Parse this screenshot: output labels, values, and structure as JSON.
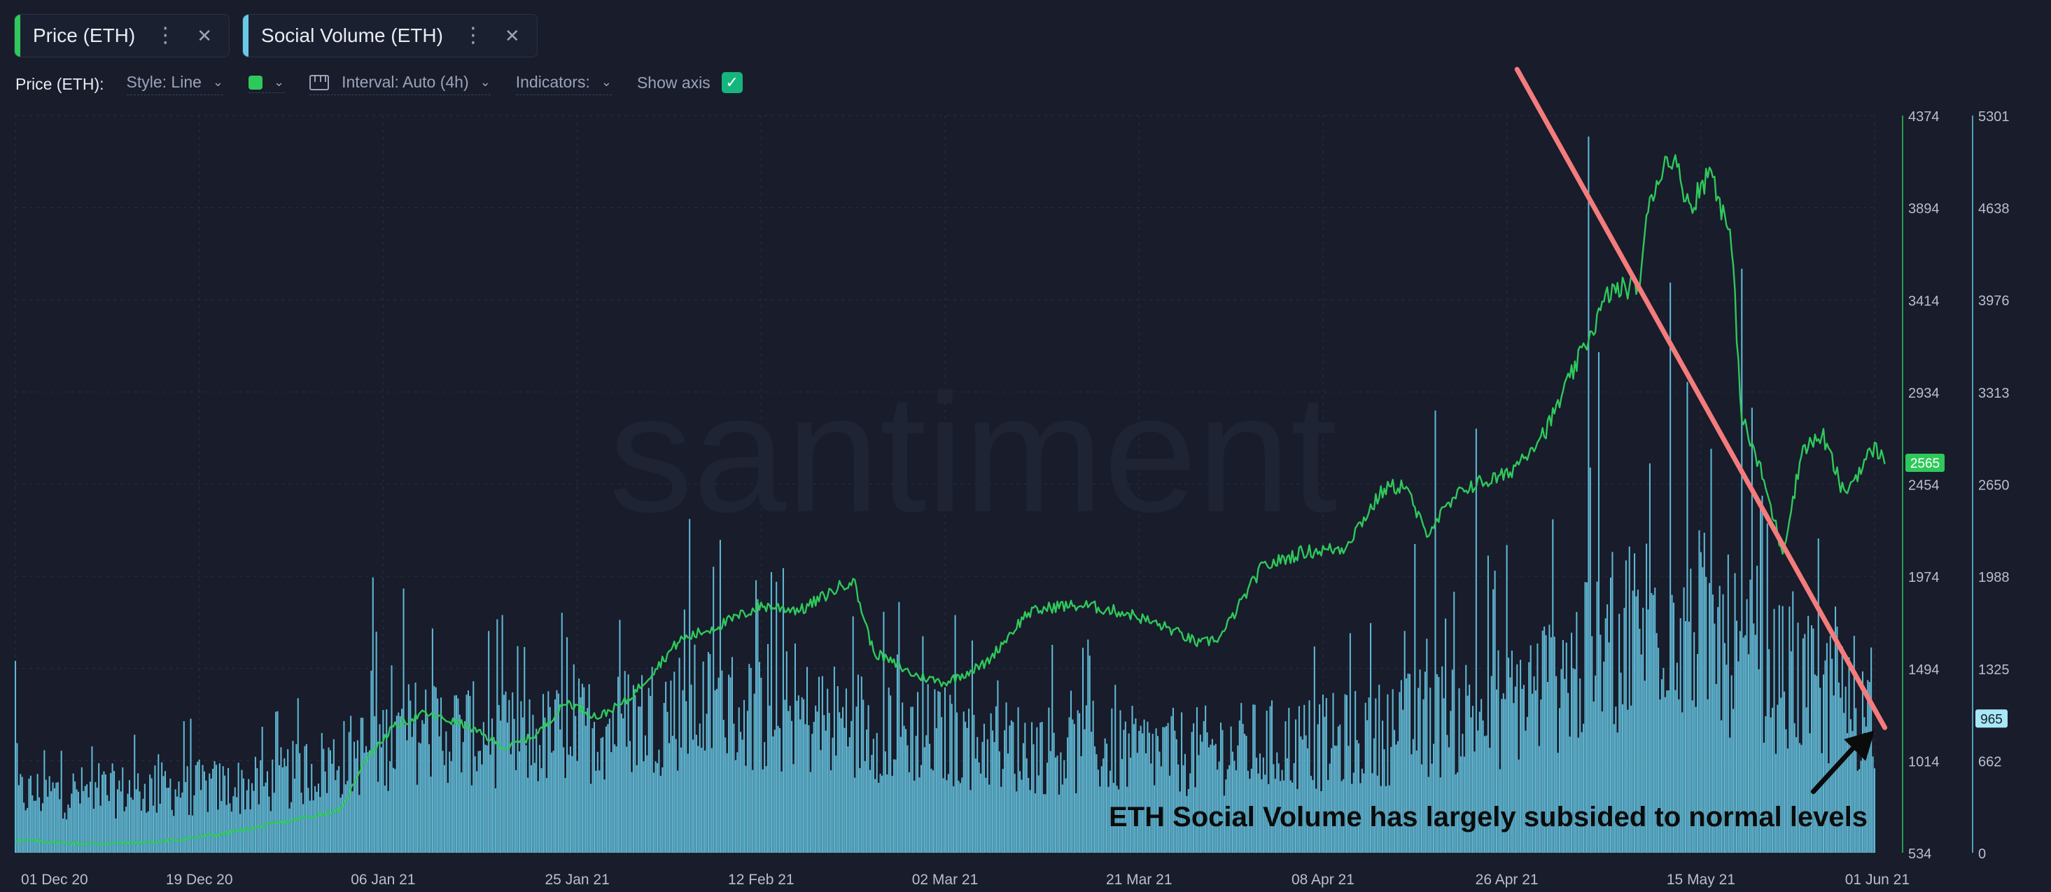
{
  "tabs": [
    {
      "label": "Price (ETH)",
      "color": "#2fc85b"
    },
    {
      "label": "Social Volume (ETH)",
      "color": "#68c9e6"
    }
  ],
  "tab_menu_glyph": "⋮",
  "tab_close_glyph": "✕",
  "toolbar": {
    "series_label": "Price (ETH):",
    "style_label": "Style: Line",
    "color": "#2fc85b",
    "interval_label": "Interval: Auto (4h)",
    "indicators_label": "Indicators:",
    "show_axis_label": "Show axis",
    "show_axis_checked": true,
    "checkbox_color": "#15b67e",
    "chevron_glyph": "⌄",
    "check_glyph": "✓"
  },
  "chart_data": {
    "type": "line",
    "x_range": [
      "2020-12-01",
      "2021-06-01"
    ],
    "x_ticks": [
      "01 Dec 20",
      "19 Dec 20",
      "06 Jan 21",
      "25 Jan 21",
      "12 Feb 21",
      "02 Mar 21",
      "21 Mar 21",
      "08 Apr 21",
      "26 Apr 21",
      "15 May 21",
      "01 Jun 21"
    ],
    "watermark": "santiment",
    "series": [
      {
        "name": "Price (ETH)",
        "type": "line",
        "color": "#2fc85b",
        "axis": "left",
        "ylim": [
          534,
          4374
        ],
        "ticks": [
          534,
          1014,
          1494,
          1974,
          2454,
          2934,
          3414,
          3894,
          4374
        ],
        "current_value_label": "2565",
        "points": [
          [
            "2020-12-01",
            600
          ],
          [
            "2020-12-08",
            580
          ],
          [
            "2020-12-15",
            590
          ],
          [
            "2020-12-21",
            630
          ],
          [
            "2020-12-27",
            690
          ],
          [
            "2021-01-02",
            760
          ],
          [
            "2021-01-04",
            1000
          ],
          [
            "2021-01-07",
            1190
          ],
          [
            "2021-01-10",
            1260
          ],
          [
            "2021-01-14",
            1200
          ],
          [
            "2021-01-18",
            1080
          ],
          [
            "2021-01-21",
            1150
          ],
          [
            "2021-01-24",
            1320
          ],
          [
            "2021-01-27",
            1240
          ],
          [
            "2021-01-30",
            1330
          ],
          [
            "2021-02-04",
            1640
          ],
          [
            "2021-02-08",
            1720
          ],
          [
            "2021-02-12",
            1820
          ],
          [
            "2021-02-16",
            1800
          ],
          [
            "2021-02-20",
            1930
          ],
          [
            "2021-02-21",
            1960
          ],
          [
            "2021-02-23",
            1580
          ],
          [
            "2021-02-27",
            1460
          ],
          [
            "2021-03-02",
            1420
          ],
          [
            "2021-03-06",
            1520
          ],
          [
            "2021-03-10",
            1780
          ],
          [
            "2021-03-13",
            1820
          ],
          [
            "2021-03-16",
            1820
          ],
          [
            "2021-03-20",
            1780
          ],
          [
            "2021-03-24",
            1700
          ],
          [
            "2021-03-27",
            1620
          ],
          [
            "2021-03-29",
            1660
          ],
          [
            "2021-04-02",
            2020
          ],
          [
            "2021-04-06",
            2100
          ],
          [
            "2021-04-10",
            2120
          ],
          [
            "2021-04-14",
            2430
          ],
          [
            "2021-04-16",
            2450
          ],
          [
            "2021-04-18",
            2200
          ],
          [
            "2021-04-22",
            2440
          ],
          [
            "2021-04-26",
            2500
          ],
          [
            "2021-04-30",
            2750
          ],
          [
            "2021-05-03",
            3100
          ],
          [
            "2021-05-06",
            3450
          ],
          [
            "2021-05-09",
            3500
          ],
          [
            "2021-05-10",
            3950
          ],
          [
            "2021-05-12",
            4180
          ],
          [
            "2021-05-14",
            3900
          ],
          [
            "2021-05-16",
            4100
          ],
          [
            "2021-05-18",
            3700
          ],
          [
            "2021-05-19",
            2800
          ],
          [
            "2021-05-21",
            2500
          ],
          [
            "2021-05-23",
            2100
          ],
          [
            "2021-05-25",
            2650
          ],
          [
            "2021-05-27",
            2700
          ],
          [
            "2021-05-29",
            2400
          ],
          [
            "2021-06-01",
            2650
          ],
          [
            "2021-06-02",
            2565
          ]
        ]
      },
      {
        "name": "Social Volume (ETH)",
        "type": "bar",
        "color": "#68c9e6",
        "axis": "right",
        "ylim": [
          0,
          5301
        ],
        "ticks": [
          0,
          662,
          1325,
          1988,
          2650,
          3313,
          3976,
          4638,
          5301
        ],
        "current_value_label": "965",
        "baseline_profile": [
          [
            "2020-12-01",
            420
          ],
          [
            "2020-12-25",
            480
          ],
          [
            "2021-01-03",
            700
          ],
          [
            "2021-01-10",
            900
          ],
          [
            "2021-01-20",
            800
          ],
          [
            "2021-02-05",
            1050
          ],
          [
            "2021-02-20",
            950
          ],
          [
            "2021-03-10",
            750
          ],
          [
            "2021-03-25",
            720
          ],
          [
            "2021-04-10",
            800
          ],
          [
            "2021-04-25",
            1050
          ],
          [
            "2021-05-05",
            1400
          ],
          [
            "2021-05-12",
            1800
          ],
          [
            "2021-05-20",
            1350
          ],
          [
            "2021-05-31",
            1000
          ]
        ],
        "peaks": [
          [
            "2020-12-01",
            1380
          ],
          [
            "2021-01-05",
            1980
          ],
          [
            "2021-01-08",
            1900
          ],
          [
            "2021-01-24",
            1550
          ],
          [
            "2021-02-05",
            2400
          ],
          [
            "2021-02-08",
            2250
          ],
          [
            "2021-02-21",
            1700
          ],
          [
            "2021-04-17",
            2220
          ],
          [
            "2021-04-19",
            3180
          ],
          [
            "2021-04-23",
            3050
          ],
          [
            "2021-05-04",
            5150
          ],
          [
            "2021-05-05",
            3600
          ],
          [
            "2021-05-10",
            2800
          ],
          [
            "2021-05-12",
            4100
          ],
          [
            "2021-05-19",
            4200
          ],
          [
            "2021-05-20",
            3200
          ],
          [
            "2021-05-24",
            1880
          ],
          [
            "2021-05-30",
            1560
          ]
        ]
      }
    ],
    "annotations": {
      "text": "ETH Social Volume has largely subsided to normal levels",
      "trend_line": {
        "color": "#f47c7c",
        "from": [
          "2021-04-27",
          5301
        ],
        "to": [
          "2021-06-02",
          900
        ]
      },
      "arrow": {
        "color": "#0b0b0b",
        "from": [
          "2021-05-26",
          440
        ],
        "to": [
          "2021-06-01",
          880
        ]
      }
    }
  }
}
